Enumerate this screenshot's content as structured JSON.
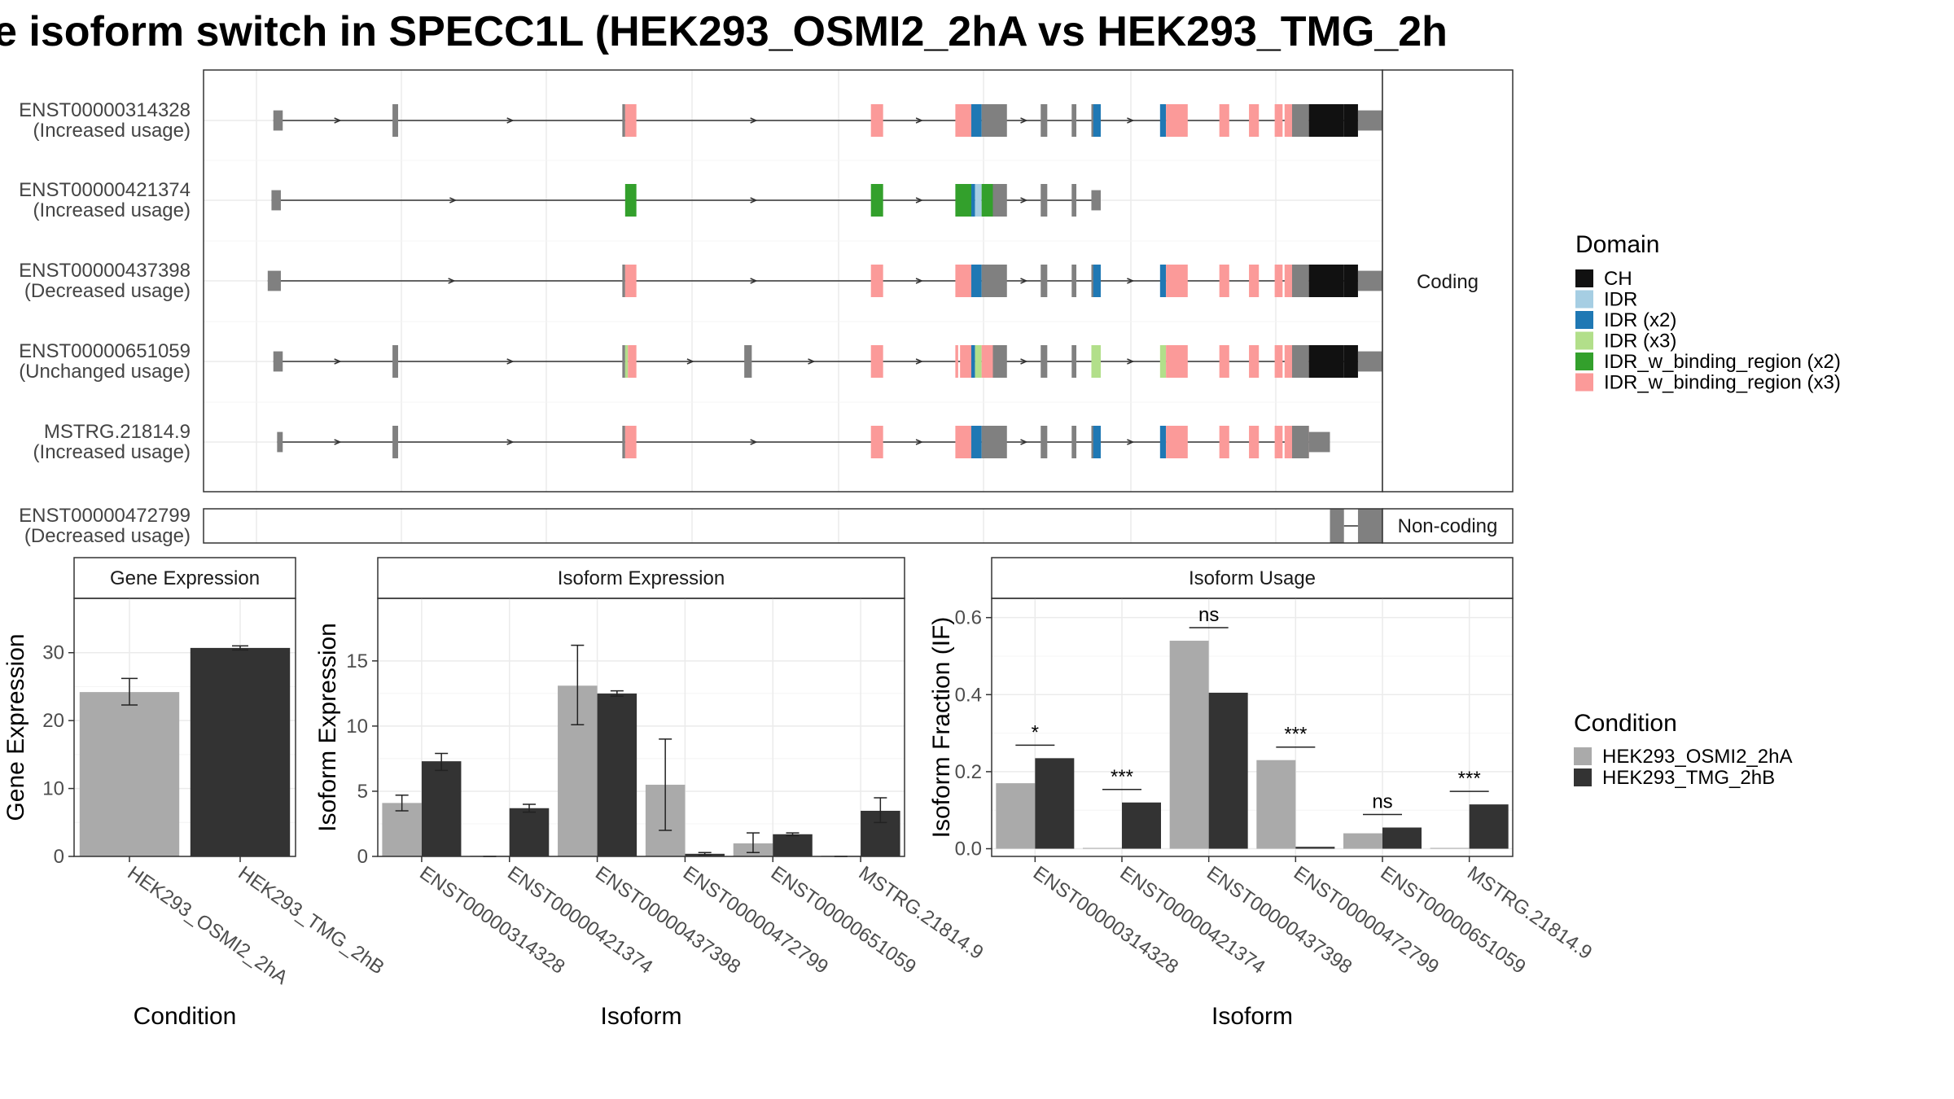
{
  "title": "e isoform switch in SPECC1L (HEK293_OSMI2_2hA vs HEK293_TMG_2h",
  "colors": {
    "CH": "#111111",
    "IDR": "#a6cee3",
    "IDR (x2)": "#1f78b4",
    "IDR (x3)": "#b2df8a",
    "IDR_w_binding_region (x2)": "#33a02c",
    "IDR_w_binding_region (x3)": "#fb9a99",
    "exon": "#808080",
    "osmi": "#aaaaaa",
    "tmg": "#333333"
  },
  "domain_legend": {
    "title": "Domain",
    "items": [
      "CH",
      "IDR",
      "IDR (x2)",
      "IDR (x3)",
      "IDR_w_binding_region (x2)",
      "IDR_w_binding_region (x3)"
    ]
  },
  "condition_legend": {
    "title": "Condition",
    "items": [
      "HEK293_OSMI2_2hA",
      "HEK293_TMG_2hB"
    ]
  },
  "structure": {
    "coding_strip": "Coding",
    "noncoding_strip": "Non-coding",
    "coding": [
      {
        "id": "ENST00000314328",
        "usage": "(Increased usage)",
        "exons": [
          [
            0.018,
            0.028,
            "exon"
          ],
          [
            0.145,
            0.151,
            "exon"
          ],
          [
            0.39,
            0.393,
            "exon"
          ],
          [
            0.393,
            0.405,
            "IDR_w_binding_region (x3)"
          ],
          [
            0.655,
            0.668,
            "IDR_w_binding_region (x3)"
          ],
          [
            0.745,
            0.762,
            "IDR_w_binding_region (x3)"
          ],
          [
            0.762,
            0.773,
            "IDR (x2)"
          ],
          [
            0.773,
            0.785,
            "exon"
          ],
          [
            0.785,
            0.8,
            "exon"
          ],
          [
            0.836,
            0.843,
            "exon"
          ],
          [
            0.869,
            0.874,
            "exon"
          ],
          [
            0.89,
            0.892,
            "exon"
          ],
          [
            0.892,
            0.9,
            "IDR (x2)"
          ],
          [
            0.93,
            0.933,
            "IDR (x2)"
          ],
          [
            0.933,
            0.944,
            "IDR_w_binding_region (x3)"
          ],
          [
            0.96,
            0.965,
            "IDR_w_binding_region (x3)"
          ],
          [
            0.975,
            0.98,
            "IDR_w_binding_region (x3)"
          ],
          [
            0.988,
            0.992,
            "IDR_w_binding_region (x3)"
          ],
          [
            0.993,
            0.998,
            "IDR_w_binding_region (x3)"
          ],
          [
            0.9968,
            0.998,
            "exon"
          ],
          [
            0.998,
            0.9995,
            "CH"
          ],
          [
            0.9995,
            1.0005,
            "CH"
          ],
          [
            1.0005,
            1.0015,
            "CH"
          ],
          [
            1.0015,
            1.004,
            "exon"
          ]
        ]
      },
      {
        "id": "ENST00000421374",
        "usage": "(Increased usage)",
        "exons": [
          [
            0.016,
            0.026,
            "exon"
          ],
          [
            0.393,
            0.405,
            "IDR_w_binding_region (x2)"
          ],
          [
            0.655,
            0.668,
            "IDR_w_binding_region (x2)"
          ],
          [
            0.745,
            0.762,
            "IDR_w_binding_region (x2)"
          ],
          [
            0.762,
            0.766,
            "IDR (x2)"
          ],
          [
            0.766,
            0.773,
            "IDR"
          ],
          [
            0.773,
            0.785,
            "IDR_w_binding_region (x2)"
          ],
          [
            0.785,
            0.8,
            "exon"
          ],
          [
            0.836,
            0.843,
            "exon"
          ],
          [
            0.869,
            0.874,
            "exon"
          ],
          [
            0.89,
            0.9,
            "exon"
          ]
        ]
      },
      {
        "id": "ENST00000437398",
        "usage": "(Decreased usage)",
        "exons": [
          [
            0.012,
            0.026,
            "exon"
          ],
          [
            0.39,
            0.393,
            "exon"
          ],
          [
            0.393,
            0.405,
            "IDR_w_binding_region (x3)"
          ],
          [
            0.655,
            0.668,
            "IDR_w_binding_region (x3)"
          ],
          [
            0.745,
            0.762,
            "IDR_w_binding_region (x3)"
          ],
          [
            0.762,
            0.773,
            "IDR (x2)"
          ],
          [
            0.773,
            0.785,
            "exon"
          ],
          [
            0.785,
            0.8,
            "exon"
          ],
          [
            0.836,
            0.843,
            "exon"
          ],
          [
            0.869,
            0.874,
            "exon"
          ],
          [
            0.89,
            0.892,
            "exon"
          ],
          [
            0.892,
            0.9,
            "IDR (x2)"
          ],
          [
            0.93,
            0.933,
            "IDR (x2)"
          ],
          [
            0.933,
            0.944,
            "IDR_w_binding_region (x3)"
          ],
          [
            0.96,
            0.965,
            "IDR_w_binding_region (x3)"
          ],
          [
            0.975,
            0.98,
            "IDR_w_binding_region (x3)"
          ],
          [
            0.988,
            0.992,
            "IDR_w_binding_region (x3)"
          ],
          [
            0.993,
            0.998,
            "IDR_w_binding_region (x3)"
          ],
          [
            0.9968,
            0.998,
            "exon"
          ],
          [
            0.998,
            0.9995,
            "CH"
          ],
          [
            0.9995,
            1.0005,
            "CH"
          ],
          [
            1.0005,
            1.0015,
            "CH"
          ],
          [
            1.0015,
            1.004,
            "exon"
          ]
        ]
      },
      {
        "id": "ENST00000651059",
        "usage": "(Unchanged usage)",
        "exons": [
          [
            0.018,
            0.028,
            "exon"
          ],
          [
            0.145,
            0.151,
            "exon"
          ],
          [
            0.39,
            0.393,
            "exon"
          ],
          [
            0.393,
            0.396,
            "IDR (x3)"
          ],
          [
            0.396,
            0.405,
            "IDR_w_binding_region (x3)"
          ],
          [
            0.52,
            0.528,
            "exon"
          ],
          [
            0.655,
            0.668,
            "IDR_w_binding_region (x3)"
          ],
          [
            0.745,
            0.748,
            "IDR_w_binding_region (x3)"
          ],
          [
            0.75,
            0.762,
            "IDR_w_binding_region (x3)"
          ],
          [
            0.762,
            0.766,
            "IDR (x2)"
          ],
          [
            0.766,
            0.773,
            "IDR (x3)"
          ],
          [
            0.773,
            0.785,
            "IDR_w_binding_region (x3)"
          ],
          [
            0.785,
            0.8,
            "exon"
          ],
          [
            0.836,
            0.843,
            "exon"
          ],
          [
            0.869,
            0.874,
            "exon"
          ],
          [
            0.89,
            0.9,
            "IDR (x3)"
          ],
          [
            0.93,
            0.933,
            "IDR (x3)"
          ],
          [
            0.933,
            0.944,
            "IDR_w_binding_region (x3)"
          ],
          [
            0.96,
            0.965,
            "IDR_w_binding_region (x3)"
          ],
          [
            0.975,
            0.98,
            "IDR_w_binding_region (x3)"
          ],
          [
            0.988,
            0.992,
            "IDR_w_binding_region (x3)"
          ],
          [
            0.993,
            0.998,
            "IDR_w_binding_region (x3)"
          ],
          [
            0.9968,
            0.998,
            "exon"
          ],
          [
            0.998,
            0.9995,
            "CH"
          ],
          [
            0.9995,
            1.0005,
            "CH"
          ],
          [
            1.0005,
            1.0015,
            "CH"
          ],
          [
            1.0015,
            1.004,
            "exon"
          ]
        ]
      },
      {
        "id": "MSTRG.21814.9",
        "usage": "(Increased usage)",
        "exons": [
          [
            0.022,
            0.028,
            "exon"
          ],
          [
            0.145,
            0.151,
            "exon"
          ],
          [
            0.39,
            0.393,
            "exon"
          ],
          [
            0.393,
            0.405,
            "IDR_w_binding_region (x3)"
          ],
          [
            0.655,
            0.668,
            "IDR_w_binding_region (x3)"
          ],
          [
            0.745,
            0.762,
            "IDR_w_binding_region (x3)"
          ],
          [
            0.762,
            0.773,
            "IDR (x2)"
          ],
          [
            0.773,
            0.785,
            "exon"
          ],
          [
            0.785,
            0.8,
            "exon"
          ],
          [
            0.836,
            0.843,
            "exon"
          ],
          [
            0.869,
            0.874,
            "exon"
          ],
          [
            0.89,
            0.892,
            "exon"
          ],
          [
            0.892,
            0.9,
            "IDR (x2)"
          ],
          [
            0.93,
            0.933,
            "IDR (x2)"
          ],
          [
            0.933,
            0.944,
            "IDR_w_binding_region (x3)"
          ],
          [
            0.96,
            0.965,
            "IDR_w_binding_region (x3)"
          ],
          [
            0.975,
            0.98,
            "IDR_w_binding_region (x3)"
          ],
          [
            0.988,
            0.992,
            "IDR_w_binding_region (x3)"
          ],
          [
            0.993,
            0.998,
            "IDR_w_binding_region (x3)"
          ],
          [
            0.9968,
            0.998,
            "exon"
          ],
          [
            0.998,
            0.9995,
            "exon"
          ]
        ]
      }
    ],
    "noncoding": [
      {
        "id": "ENST00000472799",
        "usage": "(Decreased usage)",
        "exons": [
          [
            0.9995,
            1.0005,
            "exon"
          ],
          [
            1.0015,
            1.0035,
            "exon"
          ]
        ]
      }
    ]
  },
  "chart_data": [
    {
      "type": "bar",
      "title": "Gene Expression",
      "xlabel": "Condition",
      "ylabel": "Gene Expression",
      "ylim": [
        0,
        38
      ],
      "yticks": [
        0,
        10,
        20,
        30
      ],
      "categories": [
        "HEK293_OSMI2_2hA",
        "HEK293_TMG_2hB"
      ],
      "series": [
        {
          "name": "HEK293_OSMI2_2hA",
          "values": [
            24.2,
            null
          ],
          "err_low": [
            22.3,
            null
          ],
          "err_high": [
            26.2,
            null
          ]
        },
        {
          "name": "HEK293_TMG_2hB",
          "values": [
            null,
            30.7
          ],
          "err_low": [
            null,
            30.4
          ],
          "err_high": [
            null,
            31.0
          ]
        }
      ]
    },
    {
      "type": "bar",
      "title": "Isoform Expression",
      "xlabel": "Isoform",
      "ylabel": "Isoform Expression",
      "ylim": [
        0,
        19.8
      ],
      "yticks": [
        0,
        5,
        10,
        15
      ],
      "categories": [
        "ENST00000314328",
        "ENST00000421374",
        "ENST00000437398",
        "ENST00000472799",
        "ENST00000651059",
        "MSTRG.21814.9"
      ],
      "series": [
        {
          "name": "HEK293_OSMI2_2hA",
          "values": [
            4.1,
            0,
            13.1,
            5.5,
            1.0,
            0
          ],
          "err_low": [
            3.5,
            0,
            10.1,
            2.0,
            0.3,
            0
          ],
          "err_high": [
            4.7,
            0,
            16.2,
            9.0,
            1.8,
            0
          ]
        },
        {
          "name": "HEK293_TMG_2hB",
          "values": [
            7.3,
            3.7,
            12.5,
            0.2,
            1.7,
            3.5
          ],
          "err_low": [
            6.6,
            3.4,
            12.3,
            0.1,
            1.6,
            2.6
          ],
          "err_high": [
            7.9,
            4.0,
            12.7,
            0.3,
            1.8,
            4.5
          ]
        }
      ]
    },
    {
      "type": "bar",
      "title": "Isoform Usage",
      "xlabel": "Isoform",
      "ylabel": "Isoform Fraction (IF)",
      "ylim": [
        -0.02,
        0.65
      ],
      "yticks": [
        0.0,
        0.2,
        0.4,
        0.6
      ],
      "ytick_labels": [
        "0.0",
        "0.2",
        "0.4",
        "0.6"
      ],
      "categories": [
        "ENST00000314328",
        "ENST00000421374",
        "ENST00000437398",
        "ENST00000472799",
        "ENST00000651059",
        "MSTRG.21814.9"
      ],
      "series": [
        {
          "name": "HEK293_OSMI2_2hA",
          "values": [
            0.17,
            0.0,
            0.54,
            0.23,
            0.04,
            0.0
          ]
        },
        {
          "name": "HEK293_TMG_2hB",
          "values": [
            0.235,
            0.12,
            0.405,
            0.005,
            0.055,
            0.115
          ]
        }
      ],
      "annotations": [
        "*",
        "***",
        "ns",
        "***",
        "ns",
        "***"
      ]
    }
  ]
}
